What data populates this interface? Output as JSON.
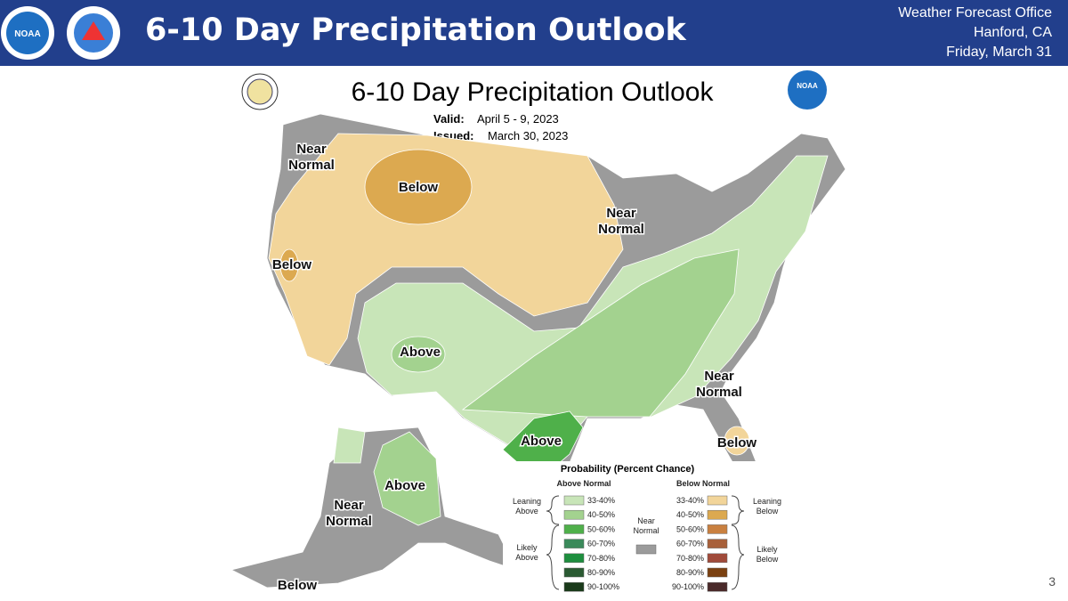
{
  "header": {
    "title": "6-10 Day Precipitation Outlook",
    "office": "Weather Forecast Office",
    "location": "Hanford, CA",
    "date": "Friday, March 31"
  },
  "map": {
    "title": "6-10 Day Precipitation Outlook",
    "valid_label": "Valid:",
    "valid": "April 5 - 9, 2023",
    "issued_label": "Issued:",
    "issued": "March 30, 2023",
    "regions": [
      "Near Normal",
      "Below",
      "Below",
      "Near Normal",
      "Above",
      "Above",
      "Near Normal",
      "Below",
      "Above",
      "Near Normal",
      "Below"
    ]
  },
  "legend": {
    "title": "Probability (Percent Chance)",
    "above_heading": "Above Normal",
    "below_heading": "Below Normal",
    "leaning_above": "Leaning Above",
    "likely_above": "Likely Above",
    "near_normal": "Near Normal",
    "near_color": "#9b9b9b",
    "leaning_below": "Leaning Below",
    "likely_below": "Likely Below",
    "above": [
      {
        "range": "33-40%",
        "color": "#c8e5b8"
      },
      {
        "range": "40-50%",
        "color": "#a3d28f"
      },
      {
        "range": "50-60%",
        "color": "#4fb04a"
      },
      {
        "range": "60-70%",
        "color": "#3a8a5a"
      },
      {
        "range": "70-80%",
        "color": "#1e8e3e"
      },
      {
        "range": "80-90%",
        "color": "#2a5a32"
      },
      {
        "range": "90-100%",
        "color": "#1a3a1a"
      }
    ],
    "below": [
      {
        "range": "33-40%",
        "color": "#f2d59a"
      },
      {
        "range": "40-50%",
        "color": "#dca950"
      },
      {
        "range": "50-60%",
        "color": "#c98040"
      },
      {
        "range": "60-70%",
        "color": "#a8603a"
      },
      {
        "range": "70-80%",
        "color": "#a04a3a"
      },
      {
        "range": "80-90%",
        "color": "#7a4010"
      },
      {
        "range": "90-100%",
        "color": "#4a2a2a"
      }
    ]
  },
  "page_number": 3
}
